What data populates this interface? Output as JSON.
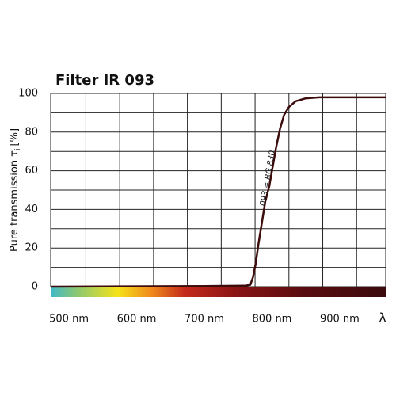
{
  "chart_data": {
    "type": "line",
    "title": "Filter IR 093",
    "ylabel": "Pure transmission τ",
    "ylabel_subscript": "i",
    "ylabel_unit": "[%]",
    "xlabel": "λ",
    "annotation": "093 = RG 830",
    "x": [
      473,
      700,
      760,
      768,
      772,
      776,
      780,
      785,
      790,
      796,
      800,
      806,
      812,
      818,
      825,
      835,
      850,
      870,
      968
    ],
    "series": [
      {
        "name": "093 = RG 830",
        "color": "#3d0c0c",
        "values": [
          0,
          0.3,
          0.5,
          1,
          5,
          12,
          22,
          33,
          44,
          52,
          60,
          72,
          82,
          89,
          93,
          96,
          97.5,
          98,
          98
        ]
      }
    ],
    "xlim": [
      473,
      968
    ],
    "xticks": [
      {
        "value": 500,
        "label": "500 nm"
      },
      {
        "value": 600,
        "label": "600 nm"
      },
      {
        "value": 700,
        "label": "700 nm"
      },
      {
        "value": 800,
        "label": "800 nm"
      },
      {
        "value": 900,
        "label": "900 nm"
      }
    ],
    "x_gridlines": [
      525,
      575,
      625,
      675,
      725,
      775,
      825,
      875,
      925
    ],
    "ylim": [
      0,
      100
    ],
    "yticks": [
      0,
      20,
      40,
      60,
      80,
      100
    ],
    "y_minor_gridlines": [
      10,
      30,
      50,
      70,
      90
    ],
    "grid": true
  }
}
